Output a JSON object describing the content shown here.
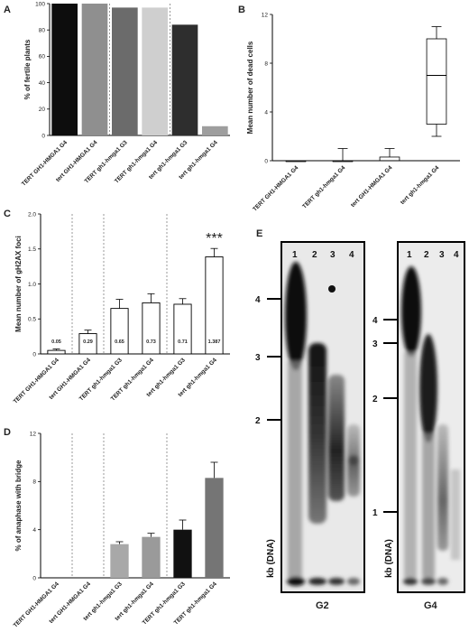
{
  "panels": {
    "a": "A",
    "b": "B",
    "c": "C",
    "d": "D",
    "e": "E"
  },
  "chart_data": [
    {
      "id": "A",
      "type": "bar",
      "ylabel": "% of fertile plants",
      "ylim": [
        0,
        100
      ],
      "yticks": [
        "0",
        "20",
        "40",
        "60",
        "80",
        "100"
      ],
      "categories": [
        "TERT GH1-HMGA1 G4",
        "tert GH1-HMGA1 G4",
        "TERT gh1-hmga1 G3",
        "TERT gh1-hmga1 G4",
        "tert gh1-hmga1 G3",
        "tert gh1-hmga1 G4"
      ],
      "values": [
        100,
        100,
        97,
        97,
        84,
        7
      ],
      "colors": [
        "#0d0d0d",
        "#8f8f8f",
        "#6b6b6b",
        "#cfcfcf",
        "#2e2e2e",
        "#9e9e9e"
      ]
    },
    {
      "id": "B",
      "type": "box",
      "ylabel": "Mean number of dead cells",
      "ylim": [
        0,
        12
      ],
      "yticks": [
        "0",
        "4",
        "8",
        "12"
      ],
      "categories": [
        "TERT GH1-HMGA1 G4",
        "TERT gh1-hmga1 G4",
        "tert GH1-HMGA1 G4",
        "tert gh1-hmga1 G4"
      ],
      "boxes": [
        {
          "min": 0,
          "q1": 0,
          "median": 0,
          "q3": 0,
          "max": 0
        },
        {
          "min": 0,
          "q1": 0,
          "median": 0,
          "q3": 0,
          "max": 1
        },
        {
          "min": 0,
          "q1": 0,
          "median": 0,
          "q3": 0.3,
          "max": 1
        },
        {
          "min": 2,
          "q1": 3,
          "median": 7,
          "q3": 10,
          "max": 11
        }
      ]
    },
    {
      "id": "C",
      "type": "bar",
      "ylabel": "Mean number of gH2AX foci",
      "ylim": [
        0,
        2.0
      ],
      "yticks": [
        "0",
        "0.5",
        "1.0",
        "1.5",
        "2.0"
      ],
      "categories": [
        "TERT GH1-HMGA1 G4",
        "tert GH1-HMGA1 G4",
        "TERT gh1-hmga1 G3",
        "TERT gh1-hmga1 G4",
        "tert gh1-hmga1 G3",
        "tert gh1-hmga1 G4"
      ],
      "values": [
        0.05,
        0.29,
        0.65,
        0.73,
        0.71,
        1.387
      ],
      "errors": [
        0.02,
        0.05,
        0.13,
        0.13,
        0.08,
        0.12
      ],
      "labels": [
        "0.05",
        "0.29",
        "0.65",
        "0.73",
        "0.71",
        "1.387"
      ],
      "annotation": "***"
    },
    {
      "id": "D",
      "type": "bar",
      "ylabel": "% of anaphase with bridge",
      "ylim": [
        0,
        12
      ],
      "yticks": [
        "0",
        "4",
        "8",
        "12"
      ],
      "categories": [
        "TERT GH1-HMGA1 G4",
        "tert GH1-HMGA1 G4",
        "tert gh1-hmga1 G3",
        "tert gh1-hmga1 G4",
        "TERT gh1-hmga1 G3",
        "TERT gh1-hmga1 G4"
      ],
      "values": [
        0,
        0,
        2.8,
        3.4,
        4.0,
        8.3
      ],
      "errors": [
        0,
        0,
        0.2,
        0.3,
        0.8,
        1.3
      ],
      "colors": [
        "#555",
        "#555",
        "#a8a8a8",
        "#9a9a9a",
        "#111111",
        "#757575"
      ]
    }
  ],
  "gel": {
    "yaxis_label": "kb (DNA)",
    "g2": {
      "caption": "G2",
      "lanes": [
        "1",
        "2",
        "3",
        "4"
      ],
      "markers": [
        "4",
        "3",
        "2"
      ]
    },
    "g4": {
      "caption": "G4",
      "lanes": [
        "1",
        "2",
        "3",
        "4"
      ],
      "markers": [
        "4",
        "3",
        "2",
        "1"
      ]
    }
  }
}
